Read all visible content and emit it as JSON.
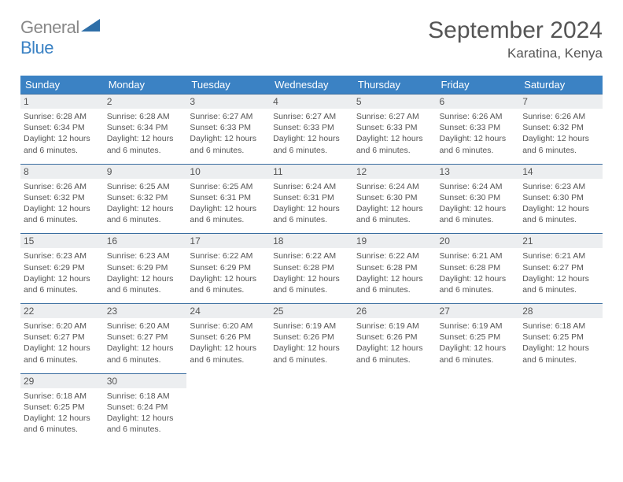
{
  "colors": {
    "header_bg": "#3b82c4",
    "header_text": "#ffffff",
    "daynum_bg": "#eceef0",
    "daynum_border": "#3b6ea0",
    "body_text": "#555555",
    "logo_gray": "#888888",
    "logo_blue": "#3b82c4",
    "page_bg": "#ffffff"
  },
  "logo": {
    "gray": "General",
    "blue": "Blue"
  },
  "title": "September 2024",
  "location": "Karatina, Kenya",
  "dow": [
    "Sunday",
    "Monday",
    "Tuesday",
    "Wednesday",
    "Thursday",
    "Friday",
    "Saturday"
  ],
  "daylight_text": "Daylight: 12 hours and 6 minutes.",
  "days": [
    {
      "n": "1",
      "sr": "Sunrise: 6:28 AM",
      "ss": "Sunset: 6:34 PM"
    },
    {
      "n": "2",
      "sr": "Sunrise: 6:28 AM",
      "ss": "Sunset: 6:34 PM"
    },
    {
      "n": "3",
      "sr": "Sunrise: 6:27 AM",
      "ss": "Sunset: 6:33 PM"
    },
    {
      "n": "4",
      "sr": "Sunrise: 6:27 AM",
      "ss": "Sunset: 6:33 PM"
    },
    {
      "n": "5",
      "sr": "Sunrise: 6:27 AM",
      "ss": "Sunset: 6:33 PM"
    },
    {
      "n": "6",
      "sr": "Sunrise: 6:26 AM",
      "ss": "Sunset: 6:33 PM"
    },
    {
      "n": "7",
      "sr": "Sunrise: 6:26 AM",
      "ss": "Sunset: 6:32 PM"
    },
    {
      "n": "8",
      "sr": "Sunrise: 6:26 AM",
      "ss": "Sunset: 6:32 PM"
    },
    {
      "n": "9",
      "sr": "Sunrise: 6:25 AM",
      "ss": "Sunset: 6:32 PM"
    },
    {
      "n": "10",
      "sr": "Sunrise: 6:25 AM",
      "ss": "Sunset: 6:31 PM"
    },
    {
      "n": "11",
      "sr": "Sunrise: 6:24 AM",
      "ss": "Sunset: 6:31 PM"
    },
    {
      "n": "12",
      "sr": "Sunrise: 6:24 AM",
      "ss": "Sunset: 6:30 PM"
    },
    {
      "n": "13",
      "sr": "Sunrise: 6:24 AM",
      "ss": "Sunset: 6:30 PM"
    },
    {
      "n": "14",
      "sr": "Sunrise: 6:23 AM",
      "ss": "Sunset: 6:30 PM"
    },
    {
      "n": "15",
      "sr": "Sunrise: 6:23 AM",
      "ss": "Sunset: 6:29 PM"
    },
    {
      "n": "16",
      "sr": "Sunrise: 6:23 AM",
      "ss": "Sunset: 6:29 PM"
    },
    {
      "n": "17",
      "sr": "Sunrise: 6:22 AM",
      "ss": "Sunset: 6:29 PM"
    },
    {
      "n": "18",
      "sr": "Sunrise: 6:22 AM",
      "ss": "Sunset: 6:28 PM"
    },
    {
      "n": "19",
      "sr": "Sunrise: 6:22 AM",
      "ss": "Sunset: 6:28 PM"
    },
    {
      "n": "20",
      "sr": "Sunrise: 6:21 AM",
      "ss": "Sunset: 6:28 PM"
    },
    {
      "n": "21",
      "sr": "Sunrise: 6:21 AM",
      "ss": "Sunset: 6:27 PM"
    },
    {
      "n": "22",
      "sr": "Sunrise: 6:20 AM",
      "ss": "Sunset: 6:27 PM"
    },
    {
      "n": "23",
      "sr": "Sunrise: 6:20 AM",
      "ss": "Sunset: 6:27 PM"
    },
    {
      "n": "24",
      "sr": "Sunrise: 6:20 AM",
      "ss": "Sunset: 6:26 PM"
    },
    {
      "n": "25",
      "sr": "Sunrise: 6:19 AM",
      "ss": "Sunset: 6:26 PM"
    },
    {
      "n": "26",
      "sr": "Sunrise: 6:19 AM",
      "ss": "Sunset: 6:26 PM"
    },
    {
      "n": "27",
      "sr": "Sunrise: 6:19 AM",
      "ss": "Sunset: 6:25 PM"
    },
    {
      "n": "28",
      "sr": "Sunrise: 6:18 AM",
      "ss": "Sunset: 6:25 PM"
    },
    {
      "n": "29",
      "sr": "Sunrise: 6:18 AM",
      "ss": "Sunset: 6:25 PM"
    },
    {
      "n": "30",
      "sr": "Sunrise: 6:18 AM",
      "ss": "Sunset: 6:24 PM"
    }
  ]
}
